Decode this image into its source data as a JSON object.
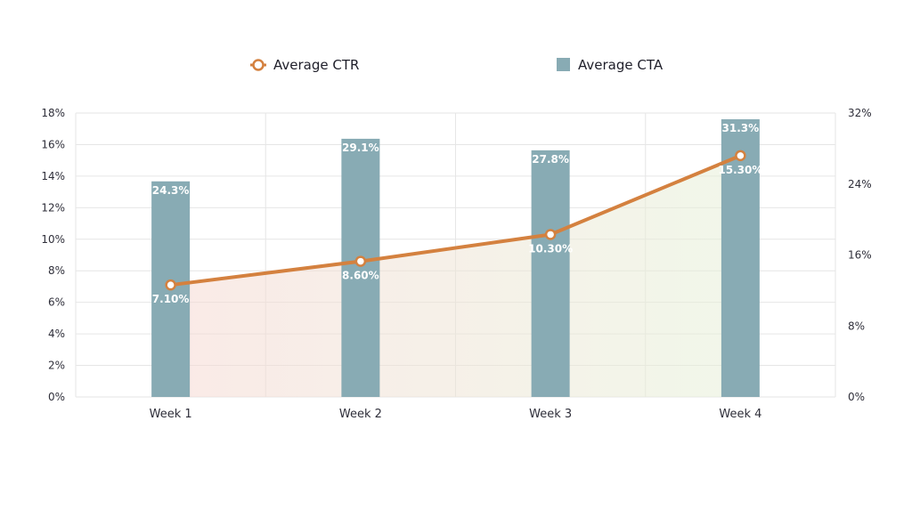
{
  "chart_data": {
    "type": "bar",
    "categories": [
      "Week 1",
      "Week 2",
      "Week 3",
      "Week 4"
    ],
    "series": [
      {
        "name": "Average CTA",
        "kind": "bar",
        "axis": "right",
        "values": [
          24.3,
          29.1,
          27.8,
          31.3
        ],
        "labels": [
          "24.3%",
          "29.1%",
          "27.8%",
          "31.3%"
        ],
        "color": "#88abb4"
      },
      {
        "name": "Average CTR",
        "kind": "line",
        "axis": "left",
        "values": [
          7.1,
          8.6,
          10.3,
          15.3
        ],
        "labels": [
          "7.10%",
          "8.60%",
          "10.30%",
          "15.30%"
        ],
        "color": "#d4813f"
      }
    ],
    "y_left": {
      "lim": [
        0,
        18
      ],
      "ticks": [
        0,
        2,
        4,
        6,
        8,
        10,
        12,
        14,
        16,
        18
      ],
      "tick_labels": [
        "0%",
        "2%",
        "4%",
        "6%",
        "8%",
        "10%",
        "12%",
        "14%",
        "16%",
        "18%"
      ]
    },
    "y_right": {
      "lim": [
        0,
        32
      ],
      "ticks": [
        0,
        8,
        16,
        24,
        32
      ],
      "tick_labels": [
        "0%",
        "8%",
        "16%",
        "24%",
        "32%"
      ]
    },
    "legend": {
      "position": "top-center",
      "items": [
        {
          "label": "Average CTR",
          "marker": "line-circle",
          "color": "#d4813f"
        },
        {
          "label": "Average CTA",
          "marker": "square",
          "color": "#88abb4"
        }
      ]
    },
    "grid": true,
    "area_fill_under_line": true,
    "area_fill_colors": [
      "#f6d9d3",
      "#e6f0d8"
    ]
  }
}
